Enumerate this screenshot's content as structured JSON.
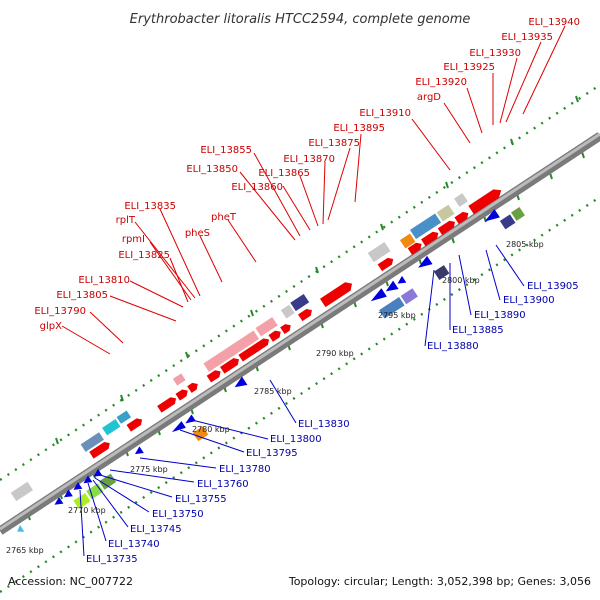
{
  "title": "Erythrobacter litoralis HTCC2594, complete genome",
  "footer": {
    "accession": "Accession: NC_007722",
    "summary": "Topology: circular; Length: 3,052,398 bp; Genes: 3,056"
  },
  "colors": {
    "forward": "#ee0000",
    "reverse": "#0000dd",
    "backbone": "#888888",
    "dots": "#2a8a2a"
  },
  "ticks": [
    "2765 kbp",
    "2770 kbp",
    "2775 kbp",
    "2780 kbp",
    "2785 kbp",
    "2790 kbp",
    "2795 kbp",
    "2800 kbp",
    "2805 kbp"
  ],
  "forward_labels": [
    "glpX",
    "ELI_13790",
    "ELI_13805",
    "ELI_13810",
    "ELI_13825",
    "rpmI",
    "rplT",
    "ELI_13835",
    "pheS",
    "pheT",
    "ELI_13850",
    "ELI_13855",
    "ELI_13860",
    "ELI_13865",
    "ELI_13870",
    "ELI_13875",
    "ELI_13895",
    "ELI_13910",
    "argD",
    "ELI_13920",
    "ELI_13925",
    "ELI_13930",
    "ELI_13935",
    "ELI_13940"
  ],
  "reverse_labels": [
    "ELI_13735",
    "ELI_13740",
    "ELI_13745",
    "ELI_13750",
    "ELI_13755",
    "ELI_13760",
    "ELI_13780",
    "ELI_13795",
    "ELI_13800",
    "ELI_13830",
    "ELI_13880",
    "ELI_13885",
    "ELI_13890",
    "ELI_13900",
    "ELI_13905"
  ]
}
